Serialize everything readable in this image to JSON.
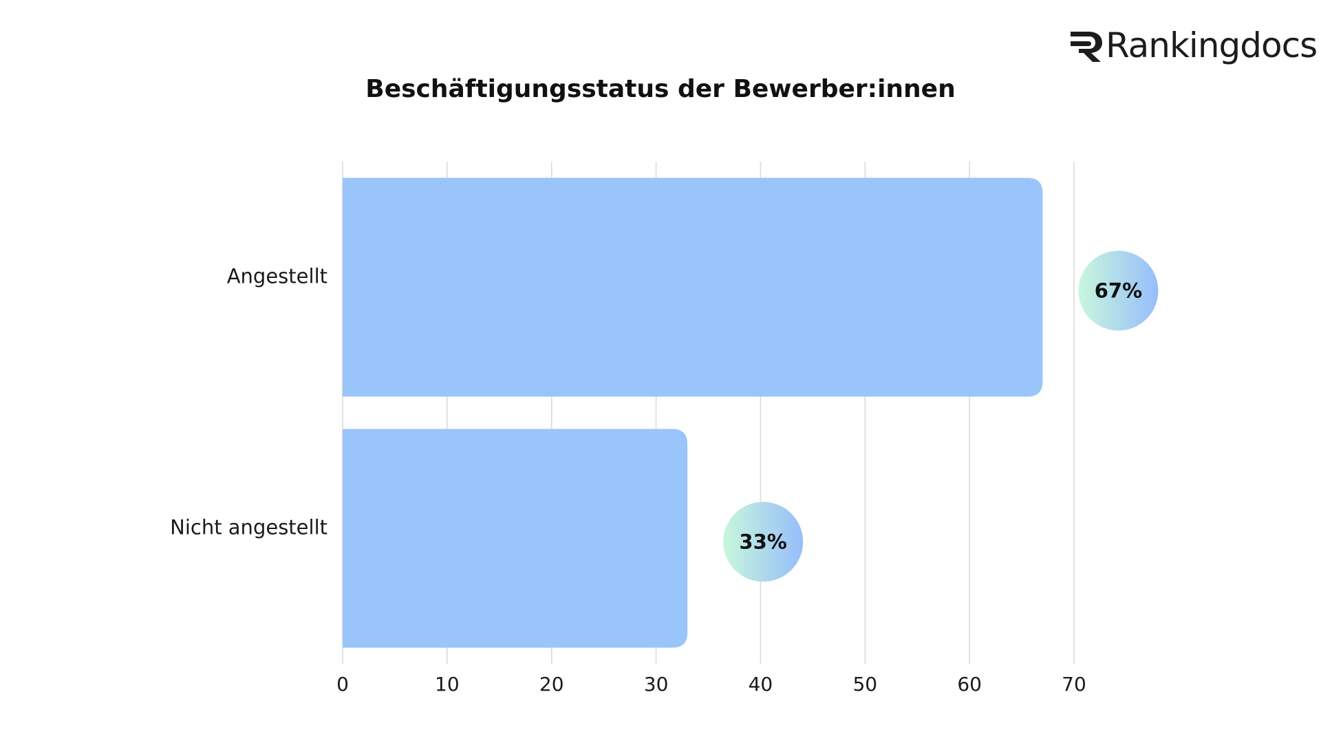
{
  "brand": {
    "name": "Rankingdocs",
    "icon": "rankingdocs-r-logo-icon",
    "color": "#1c1c1c"
  },
  "chart_data": {
    "type": "bar",
    "orientation": "horizontal",
    "title": "Beschäftigungsstatus der Bewerber:innen",
    "categories": [
      "Angestellt",
      "Nicht angestellt"
    ],
    "values": [
      67,
      33
    ],
    "data_labels": [
      "67%",
      "33%"
    ],
    "xlim": [
      0,
      70
    ],
    "x_ticks": [
      "0",
      "10",
      "20",
      "30",
      "40",
      "50",
      "60",
      "70"
    ],
    "xlabel": "",
    "ylabel": "",
    "grid": "vertical",
    "legend": "none",
    "colors": {
      "bar": "#99c5fb",
      "gridline": "#d9d9d9",
      "badge_gradient_start": "#c8f7dc",
      "badge_gradient_end": "#96bdfb"
    }
  }
}
